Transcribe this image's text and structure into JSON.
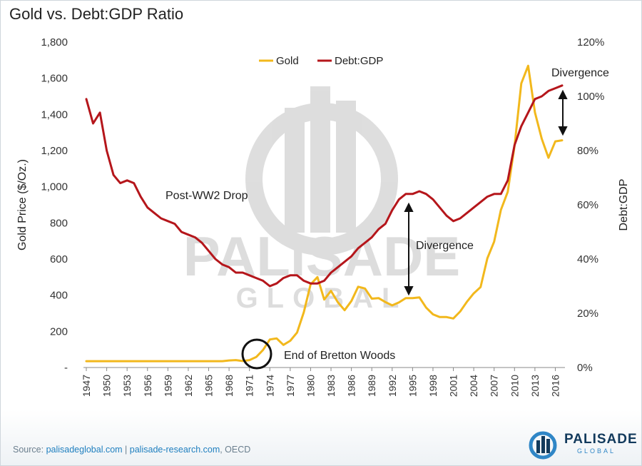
{
  "title": "Gold vs. Debt:GDP Ratio",
  "source": {
    "prefix": "Source: ",
    "link1": "palisadeglobal.com",
    "sep": " | ",
    "link2": "palisade-research.com",
    "suffix": ", OECD"
  },
  "brand": {
    "name": "PALISADE",
    "sub": "GLOBAL"
  },
  "watermark": {
    "line1": "PALISADE",
    "line2": "GLOBAL"
  },
  "chart_data": {
    "type": "line",
    "x": [
      1947,
      1948,
      1949,
      1950,
      1951,
      1952,
      1953,
      1954,
      1955,
      1956,
      1957,
      1958,
      1959,
      1960,
      1961,
      1962,
      1963,
      1964,
      1965,
      1966,
      1967,
      1968,
      1969,
      1970,
      1971,
      1972,
      1973,
      1974,
      1975,
      1976,
      1977,
      1978,
      1979,
      1980,
      1981,
      1982,
      1983,
      1984,
      1985,
      1986,
      1987,
      1988,
      1989,
      1990,
      1991,
      1992,
      1993,
      1994,
      1995,
      1996,
      1997,
      1998,
      1999,
      2000,
      2001,
      2002,
      2003,
      2004,
      2005,
      2006,
      2007,
      2008,
      2009,
      2010,
      2011,
      2012,
      2013,
      2014,
      2015,
      2016,
      2017
    ],
    "x_ticks": [
      "1947",
      "1950",
      "1953",
      "1956",
      "1959",
      "1962",
      "1965",
      "1968",
      "1971",
      "1974",
      "1977",
      "1980",
      "1983",
      "1986",
      "1989",
      "1992",
      "1995",
      "1998",
      "2001",
      "2004",
      "2007",
      "2010",
      "2013",
      "2016"
    ],
    "y_left_ticks": [
      "-",
      "200",
      "400",
      "600",
      "800",
      "1,000",
      "1,200",
      "1,400",
      "1,600",
      "1,800"
    ],
    "y_right_ticks": [
      "0%",
      "20%",
      "40%",
      "60%",
      "80%",
      "100%",
      "120%"
    ],
    "ylim_left": [
      0,
      1800
    ],
    "ylim_right": [
      0,
      120
    ],
    "ylabel_left": "Gold Price ($/Oz.)",
    "ylabel_right": "Debt:GDP",
    "legend_position": "top-center",
    "grid": false,
    "series": [
      {
        "name": "Gold",
        "axis": "left",
        "color": "#f2b81c",
        "values": [
          35,
          35,
          35,
          35,
          35,
          35,
          35,
          35,
          35,
          35,
          35,
          35,
          35,
          35,
          35,
          35,
          35,
          35,
          35,
          35,
          35,
          39,
          41,
          36,
          41,
          58,
          97,
          155,
          161,
          125,
          148,
          193,
          306,
          460,
          500,
          376,
          424,
          361,
          317,
          368,
          447,
          437,
          381,
          384,
          362,
          344,
          360,
          384,
          384,
          388,
          331,
          294,
          279,
          279,
          271,
          310,
          364,
          410,
          445,
          604,
          696,
          872,
          972,
          1225,
          1572,
          1669,
          1411,
          1266,
          1160,
          1251,
          1257
        ]
      },
      {
        "name": "Debt:GDP",
        "axis": "right",
        "color": "#b5161b",
        "values": [
          99,
          90,
          94,
          80,
          71,
          68,
          69,
          68,
          63,
          59,
          57,
          55,
          54,
          53,
          50,
          49,
          48,
          46,
          43,
          40,
          38,
          37,
          35,
          35,
          34,
          33,
          32,
          30,
          31,
          33,
          34,
          34,
          32,
          31,
          31,
          32,
          35,
          37,
          39,
          41,
          44,
          46,
          48,
          51,
          53,
          58,
          62,
          64,
          64,
          65,
          64,
          62,
          59,
          56,
          54,
          55,
          57,
          59,
          61,
          63,
          64,
          64,
          69,
          82,
          89,
          94,
          99,
          100,
          102,
          103,
          104
        ]
      }
    ],
    "annotations": [
      "Post-WW2 Drop",
      "Divergence",
      "End of Bretton Woods",
      "Divergence"
    ]
  }
}
